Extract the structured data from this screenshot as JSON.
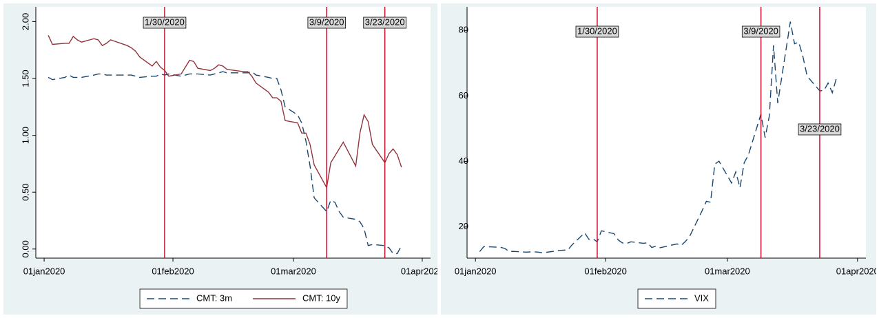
{
  "chart_data": [
    {
      "type": "line",
      "x": [
        "2020-01-02",
        "2020-01-03",
        "2020-01-06",
        "2020-01-07",
        "2020-01-08",
        "2020-01-09",
        "2020-01-10",
        "2020-01-13",
        "2020-01-14",
        "2020-01-15",
        "2020-01-16",
        "2020-01-17",
        "2020-01-21",
        "2020-01-22",
        "2020-01-23",
        "2020-01-24",
        "2020-01-27",
        "2020-01-28",
        "2020-01-29",
        "2020-01-30",
        "2020-01-31",
        "2020-02-03",
        "2020-02-04",
        "2020-02-05",
        "2020-02-06",
        "2020-02-07",
        "2020-02-10",
        "2020-02-11",
        "2020-02-12",
        "2020-02-13",
        "2020-02-14",
        "2020-02-18",
        "2020-02-19",
        "2020-02-20",
        "2020-02-21",
        "2020-02-24",
        "2020-02-25",
        "2020-02-26",
        "2020-02-27",
        "2020-02-28",
        "2020-03-02",
        "2020-03-03",
        "2020-03-04",
        "2020-03-05",
        "2020-03-06",
        "2020-03-09",
        "2020-03-10",
        "2020-03-11",
        "2020-03-12",
        "2020-03-13",
        "2020-03-16",
        "2020-03-17",
        "2020-03-18",
        "2020-03-19",
        "2020-03-20",
        "2020-03-23",
        "2020-03-24",
        "2020-03-25",
        "2020-03-26",
        "2020-03-27"
      ],
      "series": [
        {
          "name": "CMT: 3m",
          "color": "#1a476f",
          "line_style": "dash",
          "values": [
            1.51,
            1.49,
            1.51,
            1.53,
            1.51,
            1.51,
            1.51,
            1.53,
            1.54,
            1.54,
            1.53,
            1.53,
            1.53,
            1.53,
            1.52,
            1.51,
            1.52,
            1.52,
            1.54,
            1.53,
            1.54,
            1.52,
            1.53,
            1.54,
            1.54,
            1.54,
            1.53,
            1.54,
            1.55,
            1.56,
            1.55,
            1.55,
            1.55,
            1.56,
            1.53,
            1.51,
            1.5,
            1.5,
            1.4,
            1.25,
            1.18,
            1.11,
            0.95,
            0.73,
            0.45,
            0.33,
            0.43,
            0.41,
            0.33,
            0.28,
            0.26,
            0.24,
            0.18,
            0.03,
            0.04,
            0.03,
            0.01,
            -0.04,
            -0.04,
            0.03
          ]
        },
        {
          "name": "CMT: 10y",
          "color": "#90353b",
          "line_style": "solid",
          "values": [
            1.88,
            1.8,
            1.81,
            1.81,
            1.87,
            1.84,
            1.82,
            1.85,
            1.84,
            1.79,
            1.81,
            1.84,
            1.79,
            1.77,
            1.74,
            1.69,
            1.61,
            1.65,
            1.6,
            1.57,
            1.52,
            1.54,
            1.6,
            1.66,
            1.65,
            1.59,
            1.57,
            1.59,
            1.62,
            1.61,
            1.58,
            1.56,
            1.56,
            1.52,
            1.46,
            1.38,
            1.33,
            1.33,
            1.3,
            1.13,
            1.11,
            1.02,
            1.02,
            0.92,
            0.74,
            0.54,
            0.76,
            0.82,
            0.88,
            0.94,
            0.73,
            1.02,
            1.18,
            1.12,
            0.92,
            0.76,
            0.84,
            0.88,
            0.83,
            0.72
          ]
        }
      ],
      "xlim": [
        "2019-12-30",
        "2020-04-03"
      ],
      "xticks": [
        {
          "value": "2020-01-01",
          "label": "01jan2020"
        },
        {
          "value": "2020-02-01",
          "label": "01feb2020"
        },
        {
          "value": "2020-03-01",
          "label": "01mar2020"
        },
        {
          "value": "2020-04-01",
          "label": "01apr2020"
        }
      ],
      "ylim": [
        -0.08,
        2.13
      ],
      "yticks": [
        {
          "value": 0,
          "label": "0.00"
        },
        {
          "value": 0.5,
          "label": "0.50"
        },
        {
          "value": 1,
          "label": "1.00"
        },
        {
          "value": 1.5,
          "label": "1.50"
        },
        {
          "value": 2,
          "label": "2.00"
        }
      ],
      "xlines": [
        {
          "value": "2020-01-30",
          "label": "1/30/2020"
        },
        {
          "value": "2020-03-09",
          "label": "3/9/2020"
        },
        {
          "value": "2020-03-23",
          "label": "3/23/2020"
        }
      ],
      "xline_color": "#c8102e",
      "legend": "bottom"
    },
    {
      "type": "line",
      "x": [
        "2020-01-02",
        "2020-01-03",
        "2020-01-06",
        "2020-01-07",
        "2020-01-08",
        "2020-01-09",
        "2020-01-10",
        "2020-01-13",
        "2020-01-14",
        "2020-01-15",
        "2020-01-16",
        "2020-01-17",
        "2020-01-21",
        "2020-01-22",
        "2020-01-23",
        "2020-01-24",
        "2020-01-27",
        "2020-01-28",
        "2020-01-29",
        "2020-01-30",
        "2020-01-31",
        "2020-02-03",
        "2020-02-04",
        "2020-02-05",
        "2020-02-06",
        "2020-02-07",
        "2020-02-10",
        "2020-02-11",
        "2020-02-12",
        "2020-02-13",
        "2020-02-14",
        "2020-02-18",
        "2020-02-19",
        "2020-02-20",
        "2020-02-21",
        "2020-02-24",
        "2020-02-25",
        "2020-02-26",
        "2020-02-27",
        "2020-02-28",
        "2020-03-02",
        "2020-03-03",
        "2020-03-04",
        "2020-03-05",
        "2020-03-06",
        "2020-03-09",
        "2020-03-10",
        "2020-03-11",
        "2020-03-12",
        "2020-03-13",
        "2020-03-16",
        "2020-03-17",
        "2020-03-18",
        "2020-03-19",
        "2020-03-20",
        "2020-03-23",
        "2020-03-24",
        "2020-03-25",
        "2020-03-26",
        "2020-03-27"
      ],
      "series": [
        {
          "name": "VIX",
          "color": "#1a476f",
          "line_style": "dash",
          "values": [
            12.47,
            14.02,
            13.85,
            13.79,
            13.45,
            12.54,
            12.56,
            12.32,
            12.39,
            12.42,
            12.32,
            12.1,
            12.85,
            12.91,
            12.98,
            14.56,
            18.23,
            16.28,
            16.39,
            15.49,
            18.84,
            17.97,
            16.05,
            15.15,
            14.96,
            15.47,
            15.04,
            15.18,
            13.74,
            14.15,
            13.68,
            14.83,
            14.38,
            15.56,
            17.08,
            25.03,
            27.85,
            27.56,
            39.16,
            40.11,
            33.42,
            36.82,
            31.99,
            39.62,
            41.94,
            54.46,
            47.3,
            53.9,
            75.47,
            57.83,
            82.69,
            75.91,
            76.45,
            72.0,
            66.04,
            61.59,
            61.67,
            63.95,
            61.0,
            65.54
          ]
        }
      ],
      "xlim": [
        "2019-12-30",
        "2020-04-03"
      ],
      "xticks": [
        {
          "value": "2020-01-01",
          "label": "01jan2020"
        },
        {
          "value": "2020-02-01",
          "label": "01feb2020"
        },
        {
          "value": "2020-03-01",
          "label": "01mar2020"
        },
        {
          "value": "2020-04-01",
          "label": "01apr2020"
        }
      ],
      "ylim": [
        10.5,
        87.2
      ],
      "yticks": [
        20,
        40,
        60,
        80
      ],
      "xlines": [
        {
          "value": "2020-01-30",
          "label": "1/30/2020"
        },
        {
          "value": "2020-03-09",
          "label": "3/9/2020"
        },
        {
          "value": "2020-03-23",
          "label": "3/23/2020"
        }
      ],
      "xline_color": "#c8102e",
      "legend": "bottom"
    }
  ]
}
